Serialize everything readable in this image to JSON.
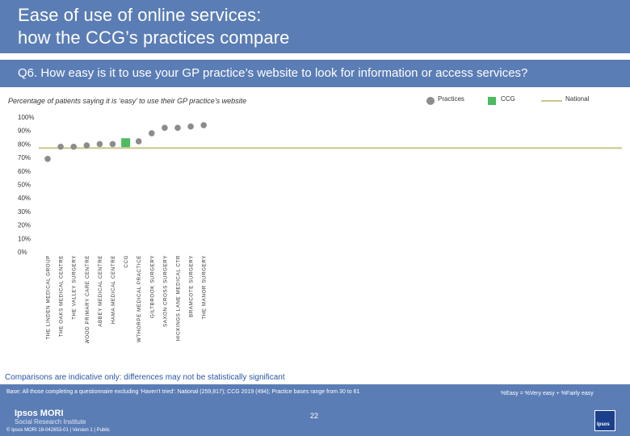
{
  "header": {
    "title_line1": "Ease of use of online services:",
    "title_line2": "how the CCG’s practices compare"
  },
  "question": "Q6. How easy is it to use your GP practice’s website to look for information or access services?",
  "subtitle": "Percentage of patients saying it is ‘easy’ to use their GP practice’s website",
  "legend": {
    "practices": "Practices",
    "ccg": "CCG",
    "national": "National"
  },
  "colors": {
    "practice": "#8c8c8c",
    "ccg": "#4dbb5f",
    "national": "#c9c58a",
    "banner": "#5b7db5"
  },
  "chart_data": {
    "type": "scatter",
    "title": "",
    "ylabel": "",
    "xlabel": "",
    "ylim": [
      0,
      100
    ],
    "yticks": [
      "0%",
      "10%",
      "20%",
      "30%",
      "40%",
      "50%",
      "60%",
      "70%",
      "80%",
      "90%",
      "100%"
    ],
    "national_value": 77,
    "categories": [
      "THE LINDEN MEDICAL GROUP",
      "THE OAKS MEDICAL CENTRE",
      "THE VALLEY SURGERY",
      "EASTWOOD PRIMARY CARE CENTRE",
      "ABBEY MEDICAL CENTRE",
      "HAMA MEDICAL CENTRE",
      "CCG",
      "NEWTHORPE MEDICAL PRACTICE",
      "GILTBROOK SURGERY",
      "SAXON CROSS SURGERY",
      "HICKINGS LANE MEDICAL CTR",
      "BRAMCOTE SURGERY",
      "THE MANOR SURGERY"
    ],
    "values": [
      69,
      78,
      78,
      79,
      80,
      80,
      81,
      82,
      88,
      92,
      92,
      93,
      94
    ],
    "kinds": [
      "practice",
      "practice",
      "practice",
      "practice",
      "practice",
      "practice",
      "ccg",
      "practice",
      "practice",
      "practice",
      "practice",
      "practice",
      "practice"
    ]
  },
  "note": "Comparisons are indicative only: differences may not be statistically significant",
  "footer": {
    "base": "Base: All those completing a questionnaire excluding ‘Haven’t tried’: National (259,817); CCG 2019 (494); Practice bases range from 30 to 61",
    "definition": "%Easy = %Very easy + %Fairly easy",
    "logo": "Ipsos MORI",
    "logo_sub": "Social Research Institute",
    "copyright": "© Ipsos MORI     18-042653-01 | Version 1 | Public",
    "page": "22",
    "badge": "Ipsos"
  }
}
